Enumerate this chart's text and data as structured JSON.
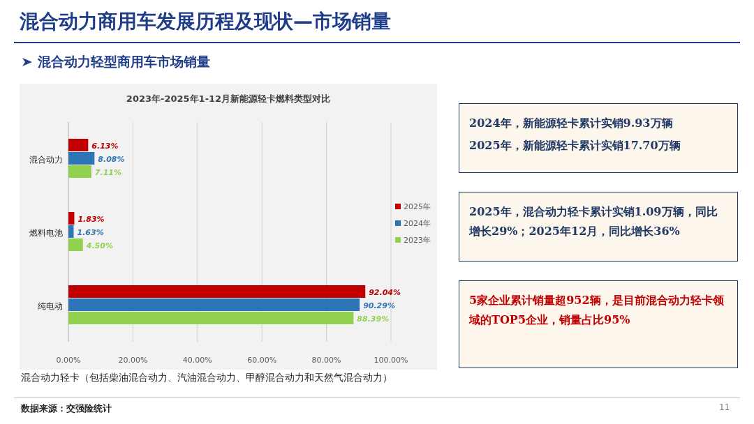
{
  "chart_data": [
    {
      "type": "bar",
      "orientation": "horizontal",
      "title": "2023年-2025年1-12月新能源轻卡燃料类型对比",
      "categories": [
        "混合动力",
        "燃料电池",
        "纯电动"
      ],
      "series": [
        {
          "name": "2025年",
          "color": "#c00000",
          "values": [
            6.13,
            1.83,
            92.04
          ],
          "value_labels": [
            "6.13%",
            "1.83%",
            "92.04%"
          ]
        },
        {
          "name": "2024年",
          "color": "#2e75b6",
          "values": [
            8.08,
            1.63,
            90.29
          ],
          "value_labels": [
            "8.08%",
            "1.63%",
            "90.29%"
          ]
        },
        {
          "name": "2023年",
          "color": "#92d050",
          "values": [
            7.11,
            4.5,
            88.39
          ],
          "value_labels": [
            "7.11%",
            "4.50%",
            "88.39%"
          ]
        }
      ],
      "xlim": [
        0,
        100
      ],
      "xticks": [
        {
          "value": 0,
          "label": "0.00%"
        },
        {
          "value": 20,
          "label": "20.00%"
        },
        {
          "value": 40,
          "label": "40.00%"
        },
        {
          "value": 60,
          "label": "60.00%"
        },
        {
          "value": 80,
          "label": "80.00%"
        },
        {
          "value": 100,
          "label": "100.00%"
        }
      ],
      "grid": "x",
      "legend": "right",
      "annotations": [
        "混合动力轻卡（包括柴油混合动力、汽油混合动力、甲醇混合动力和天然气混合动力）"
      ]
    },
    {
      "type": "other",
      "title": "混合动力商用车发展历程及现状—市场销量",
      "subtitle": "混合动力轻型商用车市场销量",
      "annotations": [
        "2024年，新能源轻卡累计实销9.93万辆",
        "2025年，新能源轻卡累计实销17.70万辆",
        "2025年，混合动力轻卡累计实销1.09万辆，同比增长29%；2025年12月，同比增长36%",
        "5家企业累计销量超952辆，是目前混合动力轻卡领域的TOP5企业，销量占比95%",
        "数据来源：交强险统计",
        "11"
      ]
    }
  ]
}
